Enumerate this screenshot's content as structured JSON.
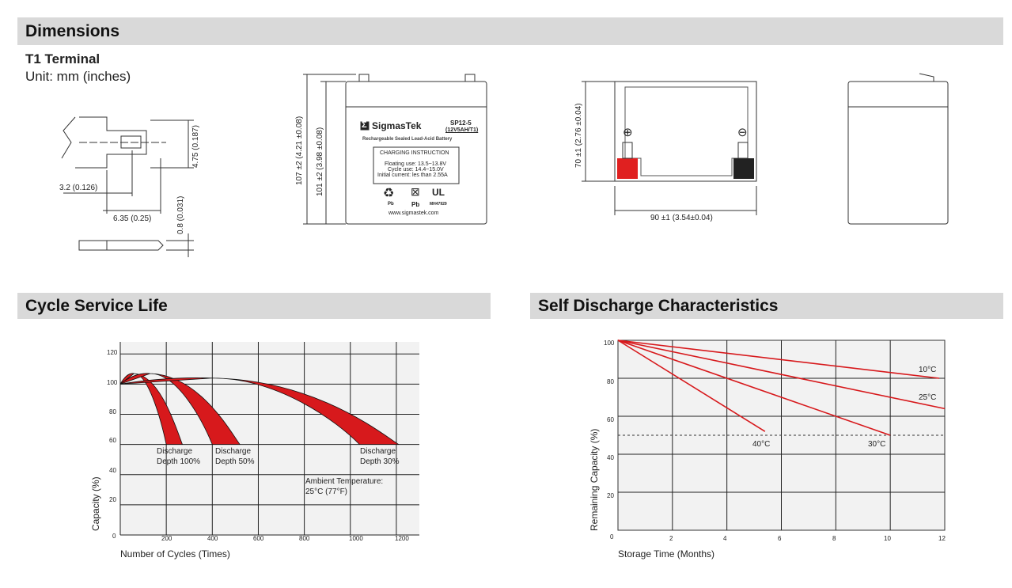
{
  "sections": {
    "dimensions": "Dimensions",
    "cycle_life": "Cycle Service Life",
    "self_discharge": "Self Discharge Characteristics"
  },
  "terminal": {
    "title": "T1 Terminal",
    "unit": "Unit: mm (inches)",
    "dim_height": "4.75 (0.187)",
    "dim_offset": "3.2 (0.126)",
    "dim_width": "6.35 (0.25)",
    "dim_thickness": "0.8 (0.031)"
  },
  "battery": {
    "brand": "SigmasTek",
    "model": "SP12-5",
    "spec": "(12V5AH/T1)",
    "subtitle": "Rechargeable Sealed Lead-Acid Battery",
    "charging_title": "CHARGING INSTRUCTION",
    "floating": "Floating use: 13.5~13.8V",
    "cycle": "Cycle use: 14.4~15.0V",
    "initial": "Initial current: les than 2.55A",
    "pb1": "Pb",
    "pb2": "Pb",
    "ul_code": "MH47929",
    "website": "www.sigmastek.com",
    "dim_total_height": "107 ±2 (4.21 ±0.08)",
    "dim_body_height": "101 ±2 (3.98 ±0.08)",
    "dim_side_height": "70 ±1 (2.76 ±0.04)",
    "dim_width": "90 ±1 (3.54±0.04)",
    "plus": "⊕",
    "minus": "⊖"
  },
  "colors": {
    "header_bg": "#d9d9d9",
    "curve_red": "#d7191c",
    "plot_bg": "#f2f2f2",
    "positive_terminal": "#e02020",
    "negative_terminal": "#222222"
  },
  "chart_data": [
    {
      "type": "area",
      "title": "Cycle Service Life",
      "xlabel": "Number of Cycles (Times)",
      "ylabel": "Capacity (%)",
      "xlim": [
        0,
        1300
      ],
      "ylim": [
        0,
        128
      ],
      "xticks": [
        "200",
        "400",
        "600",
        "800",
        "1000",
        "1200"
      ],
      "yticks": [
        "0",
        "20",
        "40",
        "60",
        "80",
        "100",
        "120"
      ],
      "grid": true,
      "series": [
        {
          "name": "Discharge Depth 100%",
          "start": [
            0,
            100
          ],
          "peak": [
            60,
            107
          ],
          "end_range": [
            200,
            270
          ],
          "end_capacity": 60
        },
        {
          "name": "Discharge Depth 50%",
          "start": [
            0,
            100
          ],
          "peak": [
            130,
            107
          ],
          "end_range": [
            400,
            520
          ],
          "end_capacity": 60
        },
        {
          "name": "Discharge Depth 30%",
          "start": [
            0,
            100
          ],
          "peak": [
            400,
            104
          ],
          "end_range": [
            1040,
            1210
          ],
          "end_capacity": 60
        }
      ],
      "labels": [
        {
          "l1": "Discharge",
          "l2": "Depth 100%"
        },
        {
          "l1": "Discharge",
          "l2": "Depth 50%"
        },
        {
          "l1": "Discharge",
          "l2": "Depth 30%"
        }
      ],
      "annotation": {
        "l1": "Ambient Temperature:",
        "l2": "25°C (77°F)"
      }
    },
    {
      "type": "line",
      "title": "Self Discharge Characteristics",
      "xlabel": "Storage Time (Months)",
      "ylabel": "Remaining Capacity (%)",
      "xlim": [
        0,
        12
      ],
      "ylim": [
        0,
        100
      ],
      "xticks": [
        "0",
        "2",
        "4",
        "6",
        "8",
        "10",
        "12"
      ],
      "yticks": [
        "20",
        "40",
        "60",
        "80",
        "100"
      ],
      "grid": true,
      "reference_line": 50,
      "series": [
        {
          "name": "10°C",
          "x": [
            0,
            11.8
          ],
          "y": [
            100,
            80
          ]
        },
        {
          "name": "25°C",
          "x": [
            0,
            12
          ],
          "y": [
            100,
            64
          ]
        },
        {
          "name": "30°C",
          "x": [
            0,
            10
          ],
          "y": [
            100,
            50
          ]
        },
        {
          "name": "40°C",
          "x": [
            0,
            5.4
          ],
          "y": [
            100,
            52
          ]
        }
      ]
    }
  ]
}
